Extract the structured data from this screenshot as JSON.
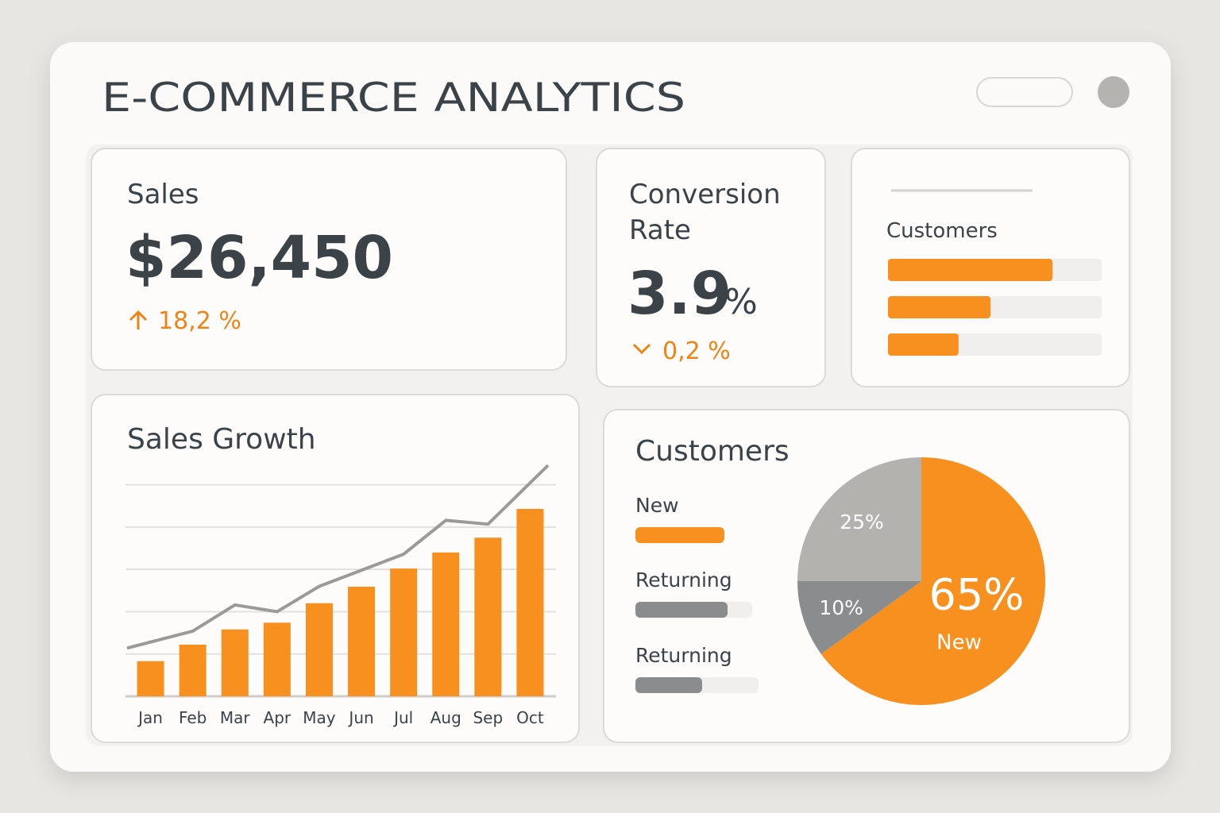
{
  "header": {
    "title": "E-COMMERCE ANALYTICS"
  },
  "sales_card": {
    "label": "Sales",
    "value": "$26,450",
    "change": "18,2 %"
  },
  "conversion_card": {
    "label_lines": [
      "Conversion",
      "Rate"
    ],
    "value": "3.9",
    "unit": "%",
    "change": "0,2 %"
  },
  "chart_data": [
    {
      "type": "hbar",
      "title": "Customers",
      "categories": [
        null,
        null,
        null
      ],
      "values": [
        77,
        48,
        33
      ],
      "xlim": [
        0,
        100
      ],
      "color": "#f7901e",
      "track_color": "#f0efed"
    },
    {
      "type": "combo",
      "title": "Sales Growth",
      "categories": [
        "Jan",
        "Feb",
        "Mar",
        "Apr",
        "May",
        "Jun",
        "Jul",
        "Aug",
        "Sep",
        "Oct"
      ],
      "series": [
        {
          "type": "bar",
          "color": "#f7901e",
          "values": [
            0.83,
            1.22,
            1.58,
            1.74,
            2.2,
            2.59,
            3.02,
            3.4,
            3.75,
            4.43
          ]
        },
        {
          "type": "line",
          "color": "#9a9a98",
          "values": [
            1.14,
            1.54,
            2.16,
            2.0,
            2.6,
            2.98,
            3.36,
            4.16,
            4.07,
            5.46
          ]
        }
      ],
      "ylim": [
        0,
        5.5
      ],
      "yticks": [
        0,
        1,
        2,
        3,
        4,
        5
      ],
      "grid": true
    },
    {
      "type": "pie",
      "title": "Customers",
      "categories": [
        "New",
        null,
        null
      ],
      "values": [
        65,
        10,
        25
      ],
      "value_labels": [
        "65%",
        "10%",
        "25%"
      ],
      "colors": [
        "#f7901e",
        "#8a8c8d",
        "#b3b2af"
      ],
      "legend": [
        "New",
        "Returning",
        "Returning"
      ]
    }
  ]
}
